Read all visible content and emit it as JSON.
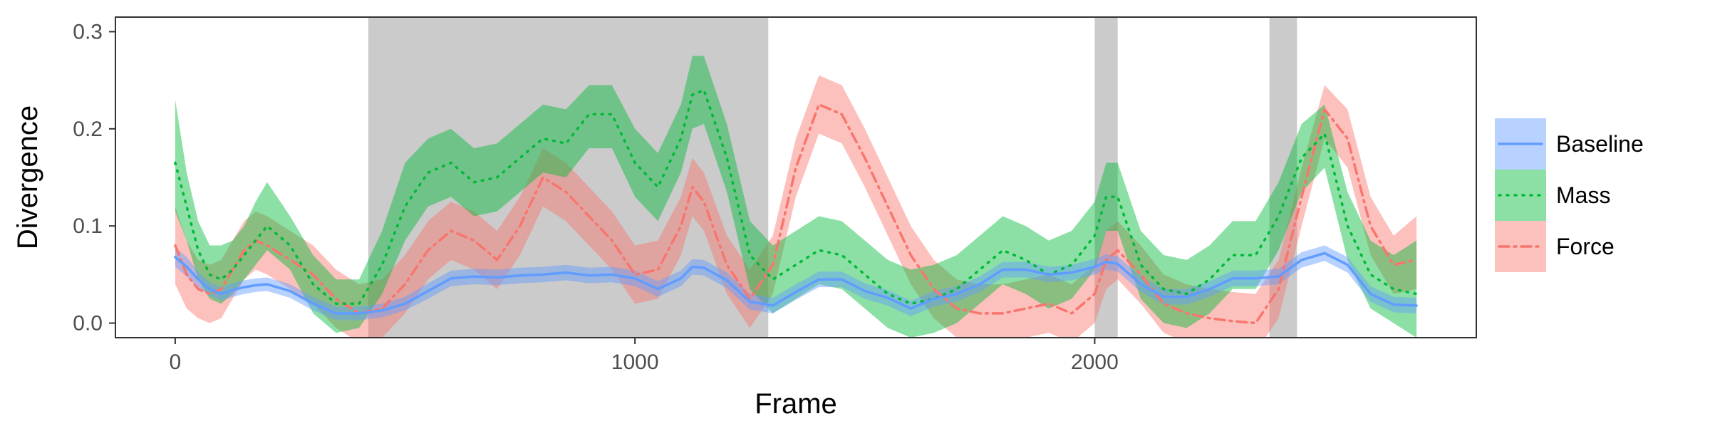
{
  "chart_data": {
    "type": "line",
    "title": "",
    "xlabel": "Frame",
    "ylabel": "Divergence",
    "xlim": [
      -130,
      2830
    ],
    "ylim": [
      -0.015,
      0.315
    ],
    "x_ticks": [
      0,
      1000,
      2000
    ],
    "x_tick_labels": [
      "0",
      "1000",
      "2000"
    ],
    "y_ticks": [
      0.0,
      0.1,
      0.2,
      0.3
    ],
    "y_tick_labels": [
      "0.0",
      "0.1",
      "0.2",
      "0.3"
    ],
    "grid": false,
    "legend_position": "right",
    "shaded_regions": [
      {
        "x_start": 420,
        "x_end": 1290
      },
      {
        "x_start": 2000,
        "x_end": 2050
      },
      {
        "x_start": 2380,
        "x_end": 2440
      }
    ],
    "x": [
      0,
      25,
      50,
      75,
      100,
      125,
      150,
      175,
      200,
      250,
      300,
      350,
      400,
      450,
      500,
      550,
      600,
      650,
      700,
      750,
      800,
      850,
      900,
      950,
      1000,
      1050,
      1100,
      1125,
      1150,
      1200,
      1250,
      1300,
      1350,
      1400,
      1450,
      1500,
      1550,
      1600,
      1650,
      1700,
      1750,
      1800,
      1850,
      1900,
      1950,
      2000,
      2025,
      2050,
      2100,
      2150,
      2200,
      2250,
      2300,
      2350,
      2400,
      2450,
      2500,
      2550,
      2600,
      2650,
      2700
    ],
    "series": [
      {
        "name": "Baseline",
        "color": "#619CFF",
        "dash": "solid",
        "values": [
          0.068,
          0.058,
          0.045,
          0.035,
          0.03,
          0.034,
          0.037,
          0.039,
          0.04,
          0.033,
          0.02,
          0.01,
          0.01,
          0.013,
          0.02,
          0.033,
          0.046,
          0.048,
          0.047,
          0.049,
          0.05,
          0.052,
          0.049,
          0.05,
          0.046,
          0.035,
          0.046,
          0.058,
          0.057,
          0.044,
          0.022,
          0.018,
          0.032,
          0.045,
          0.045,
          0.033,
          0.026,
          0.015,
          0.025,
          0.03,
          0.04,
          0.055,
          0.055,
          0.05,
          0.052,
          0.058,
          0.063,
          0.061,
          0.04,
          0.027,
          0.027,
          0.035,
          0.046,
          0.046,
          0.048,
          0.065,
          0.072,
          0.06,
          0.03,
          0.019,
          0.018
        ],
        "lower": [
          0.058,
          0.048,
          0.037,
          0.028,
          0.023,
          0.027,
          0.03,
          0.032,
          0.033,
          0.026,
          0.013,
          0.003,
          0.003,
          0.006,
          0.013,
          0.025,
          0.038,
          0.04,
          0.039,
          0.041,
          0.042,
          0.044,
          0.041,
          0.042,
          0.038,
          0.027,
          0.038,
          0.05,
          0.049,
          0.036,
          0.014,
          0.01,
          0.024,
          0.037,
          0.037,
          0.025,
          0.018,
          0.007,
          0.017,
          0.022,
          0.032,
          0.047,
          0.047,
          0.042,
          0.044,
          0.05,
          0.055,
          0.053,
          0.032,
          0.019,
          0.019,
          0.027,
          0.038,
          0.038,
          0.04,
          0.057,
          0.064,
          0.052,
          0.022,
          0.011,
          0.01
        ],
        "upper": [
          0.078,
          0.068,
          0.053,
          0.042,
          0.037,
          0.041,
          0.044,
          0.046,
          0.047,
          0.04,
          0.027,
          0.017,
          0.017,
          0.02,
          0.027,
          0.041,
          0.054,
          0.056,
          0.055,
          0.057,
          0.058,
          0.06,
          0.057,
          0.058,
          0.054,
          0.043,
          0.054,
          0.066,
          0.065,
          0.052,
          0.03,
          0.026,
          0.04,
          0.053,
          0.053,
          0.041,
          0.034,
          0.023,
          0.033,
          0.038,
          0.048,
          0.063,
          0.063,
          0.058,
          0.06,
          0.066,
          0.071,
          0.069,
          0.048,
          0.035,
          0.035,
          0.043,
          0.054,
          0.054,
          0.056,
          0.073,
          0.08,
          0.068,
          0.038,
          0.027,
          0.026
        ]
      },
      {
        "name": "Mass",
        "color": "#00BA38",
        "dash": "dotted",
        "values": [
          0.165,
          0.12,
          0.075,
          0.05,
          0.045,
          0.055,
          0.07,
          0.085,
          0.1,
          0.08,
          0.04,
          0.02,
          0.02,
          0.06,
          0.12,
          0.155,
          0.165,
          0.145,
          0.15,
          0.17,
          0.19,
          0.185,
          0.215,
          0.215,
          0.165,
          0.14,
          0.19,
          0.235,
          0.24,
          0.17,
          0.07,
          0.045,
          0.06,
          0.075,
          0.07,
          0.05,
          0.03,
          0.02,
          0.025,
          0.035,
          0.055,
          0.075,
          0.065,
          0.05,
          0.06,
          0.09,
          0.13,
          0.13,
          0.06,
          0.035,
          0.03,
          0.045,
          0.07,
          0.07,
          0.11,
          0.17,
          0.195,
          0.1,
          0.05,
          0.035,
          0.03
        ],
        "lower": [
          0.115,
          0.085,
          0.045,
          0.025,
          0.02,
          0.03,
          0.045,
          0.06,
          0.075,
          0.055,
          0.01,
          -0.01,
          -0.005,
          0.03,
          0.085,
          0.12,
          0.13,
          0.11,
          0.115,
          0.135,
          0.155,
          0.15,
          0.18,
          0.18,
          0.13,
          0.105,
          0.155,
          0.2,
          0.205,
          0.135,
          0.035,
          0.01,
          0.025,
          0.04,
          0.035,
          0.015,
          -0.005,
          -0.015,
          -0.01,
          0.0,
          0.02,
          0.04,
          0.03,
          0.015,
          0.025,
          0.055,
          0.095,
          0.095,
          0.025,
          0.0,
          -0.005,
          0.01,
          0.035,
          0.035,
          0.075,
          0.135,
          0.16,
          0.065,
          0.015,
          -0.0,
          -0.015
        ],
        "upper": [
          0.23,
          0.155,
          0.105,
          0.08,
          0.08,
          0.085,
          0.1,
          0.125,
          0.145,
          0.11,
          0.07,
          0.045,
          0.045,
          0.095,
          0.165,
          0.19,
          0.2,
          0.18,
          0.185,
          0.205,
          0.225,
          0.22,
          0.245,
          0.245,
          0.2,
          0.175,
          0.225,
          0.275,
          0.275,
          0.205,
          0.105,
          0.08,
          0.095,
          0.11,
          0.105,
          0.085,
          0.065,
          0.055,
          0.06,
          0.07,
          0.09,
          0.11,
          0.1,
          0.085,
          0.095,
          0.125,
          0.165,
          0.165,
          0.095,
          0.07,
          0.065,
          0.08,
          0.105,
          0.105,
          0.145,
          0.205,
          0.225,
          0.135,
          0.085,
          0.07,
          0.085
        ]
      },
      {
        "name": "Force",
        "color": "#F8766D",
        "dash": "dashdot",
        "values": [
          0.08,
          0.05,
          0.035,
          0.03,
          0.035,
          0.055,
          0.075,
          0.085,
          0.08,
          0.065,
          0.05,
          0.025,
          0.01,
          0.015,
          0.04,
          0.075,
          0.095,
          0.085,
          0.065,
          0.1,
          0.15,
          0.135,
          0.11,
          0.085,
          0.05,
          0.055,
          0.1,
          0.14,
          0.125,
          0.06,
          0.025,
          0.06,
          0.16,
          0.225,
          0.215,
          0.17,
          0.12,
          0.07,
          0.035,
          0.015,
          0.01,
          0.01,
          0.015,
          0.02,
          0.01,
          0.03,
          0.065,
          0.075,
          0.05,
          0.02,
          0.01,
          0.005,
          0.002,
          0.0,
          0.035,
          0.13,
          0.22,
          0.19,
          0.1,
          0.06,
          0.065
        ],
        "lower": [
          0.04,
          0.015,
          0.005,
          0.0,
          0.005,
          0.025,
          0.045,
          0.055,
          0.05,
          0.035,
          0.02,
          -0.005,
          -0.02,
          -0.015,
          0.01,
          0.045,
          0.065,
          0.055,
          0.035,
          0.07,
          0.12,
          0.105,
          0.08,
          0.055,
          0.02,
          0.025,
          0.07,
          0.11,
          0.095,
          0.03,
          -0.005,
          0.03,
          0.13,
          0.195,
          0.185,
          0.14,
          0.09,
          0.04,
          0.005,
          -0.015,
          -0.02,
          -0.02,
          -0.015,
          -0.01,
          -0.02,
          0.0,
          0.035,
          0.045,
          0.02,
          -0.01,
          -0.02,
          -0.025,
          -0.028,
          -0.03,
          0.005,
          0.1,
          0.19,
          0.16,
          0.07,
          0.03,
          0.035
        ],
        "upper": [
          0.12,
          0.085,
          0.065,
          0.06,
          0.065,
          0.085,
          0.105,
          0.115,
          0.11,
          0.095,
          0.08,
          0.055,
          0.04,
          0.045,
          0.07,
          0.105,
          0.125,
          0.115,
          0.095,
          0.13,
          0.18,
          0.165,
          0.14,
          0.115,
          0.08,
          0.085,
          0.13,
          0.17,
          0.155,
          0.09,
          0.055,
          0.09,
          0.19,
          0.255,
          0.245,
          0.2,
          0.15,
          0.1,
          0.065,
          0.045,
          0.04,
          0.04,
          0.045,
          0.05,
          0.04,
          0.06,
          0.095,
          0.105,
          0.08,
          0.05,
          0.04,
          0.035,
          0.032,
          0.03,
          0.065,
          0.16,
          0.245,
          0.22,
          0.13,
          0.09,
          0.11
        ]
      }
    ]
  }
}
